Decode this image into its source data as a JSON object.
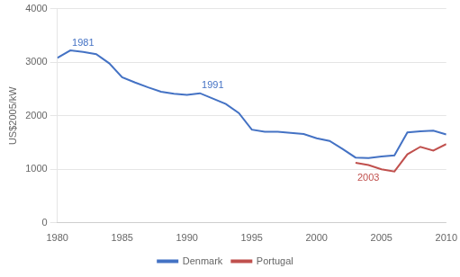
{
  "chart_data": {
    "type": "line",
    "y_label": "US$2005/kW",
    "series": [
      {
        "name": "Denmark",
        "color": "#4472C4",
        "x": [
          1980,
          1981,
          1982,
          1983,
          1984,
          1985,
          1986,
          1987,
          1988,
          1989,
          1990,
          1991,
          1992,
          1993,
          1994,
          1995,
          1996,
          1997,
          1998,
          1999,
          2000,
          2001,
          2002,
          2003,
          2004,
          2005,
          2006,
          2007,
          2008,
          2009,
          2010
        ],
        "values": [
          3080,
          3220,
          3190,
          3150,
          2980,
          2720,
          2620,
          2530,
          2450,
          2410,
          2390,
          2420,
          2320,
          2220,
          2050,
          1740,
          1700,
          1700,
          1680,
          1660,
          1580,
          1530,
          1380,
          1220,
          1210,
          1240,
          1260,
          1690,
          1710,
          1720,
          1650
        ]
      },
      {
        "name": "Portugal",
        "color": "#C0504D",
        "x": [
          2003,
          2004,
          2005,
          2006,
          2007,
          2008,
          2009,
          2010
        ],
        "values": [
          1120,
          1080,
          1000,
          960,
          1280,
          1420,
          1350,
          1470
        ]
      }
    ],
    "annotations": [
      {
        "text": "1981",
        "x": 1981,
        "y": 3220,
        "color": "#4472C4"
      },
      {
        "text": "1991",
        "x": 1991,
        "y": 2420,
        "color": "#4472C4"
      },
      {
        "text": "2003",
        "x": 2003,
        "y": 1000,
        "color": "#C0504D"
      }
    ],
    "xlim": [
      1980,
      2010
    ],
    "xticks": [
      1980,
      1985,
      1990,
      1995,
      2000,
      2005,
      2010
    ],
    "ylim": [
      0,
      4000
    ],
    "yticks": [
      0,
      1000,
      2000,
      3000,
      4000
    ],
    "grid": true,
    "legend": "bottom"
  }
}
